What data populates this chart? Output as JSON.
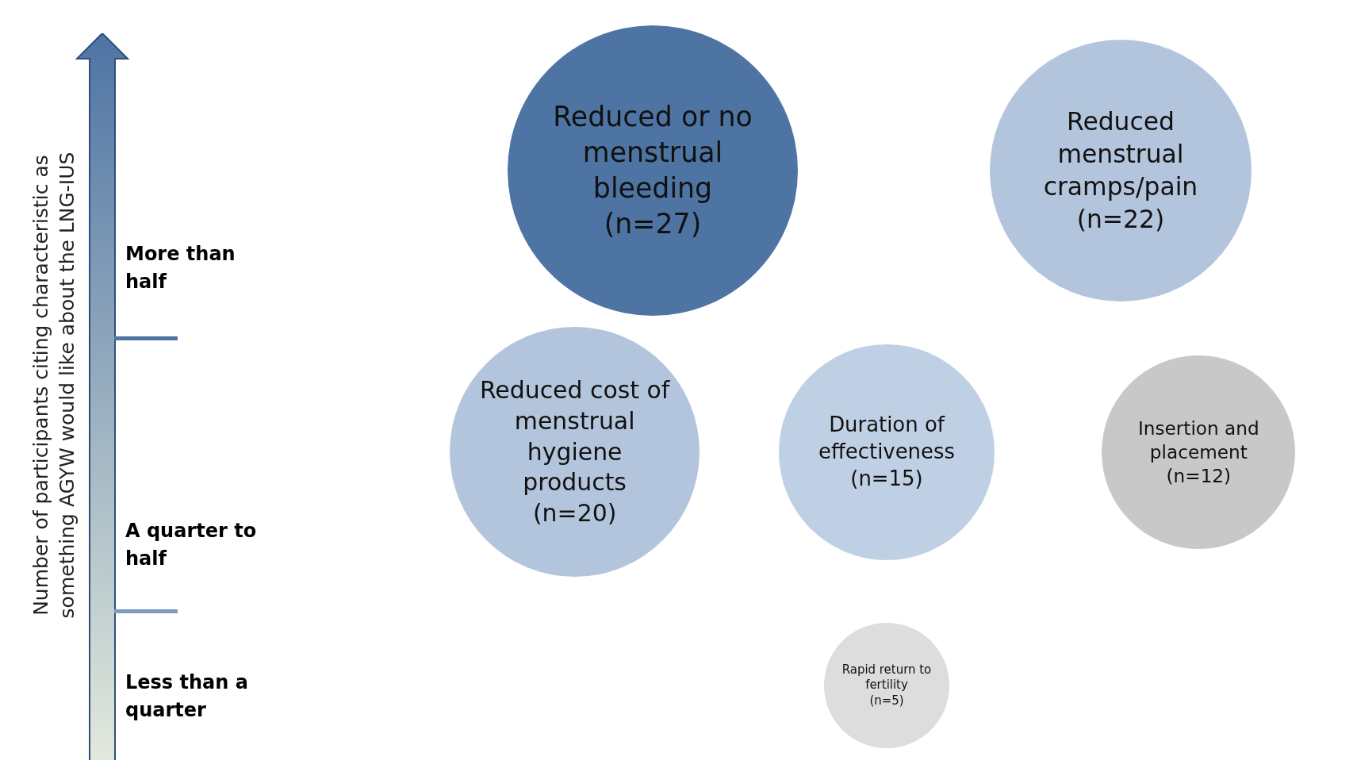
{
  "chart_data": {
    "type": "other",
    "ylabel": "Number of participants citing characteristic as something AGYW would like about the LNG-IUS",
    "categories": [
      "Reduced or no menstrual bleeding",
      "Reduced menstrual cramps/pain",
      "Reduced cost of menstrual hygiene products",
      "Duration of effectiveness",
      "Insertion and placement",
      "Rapid return to fertility"
    ],
    "annotations": [
      "More than half",
      "A quarter to half",
      "Less than a quarter"
    ],
    "series": [
      {
        "values": [
          27,
          22,
          null,
          null,
          null,
          null
        ],
        "value_labels": [
          "(n=27)",
          "(n=22)",
          null,
          null,
          null,
          null
        ],
        "colors": [
          "#4e74a4",
          "#b3c5dc",
          null,
          null,
          null,
          null
        ]
      },
      {
        "values": [
          null,
          null,
          20,
          15,
          12,
          null
        ],
        "value_labels": [
          null,
          null,
          "(n=20)",
          "(n=15)",
          "(n=12)",
          null
        ],
        "colors": [
          null,
          null,
          "#b3c5dc",
          "#c0d0e4",
          "#c8c8c8",
          null
        ]
      },
      {
        "values": [
          null,
          null,
          null,
          null,
          null,
          5
        ],
        "value_labels": [
          null,
          null,
          null,
          null,
          null,
          "(n=5)"
        ],
        "colors": [
          null,
          null,
          null,
          null,
          null,
          "#dddddd"
        ]
      }
    ]
  }
}
